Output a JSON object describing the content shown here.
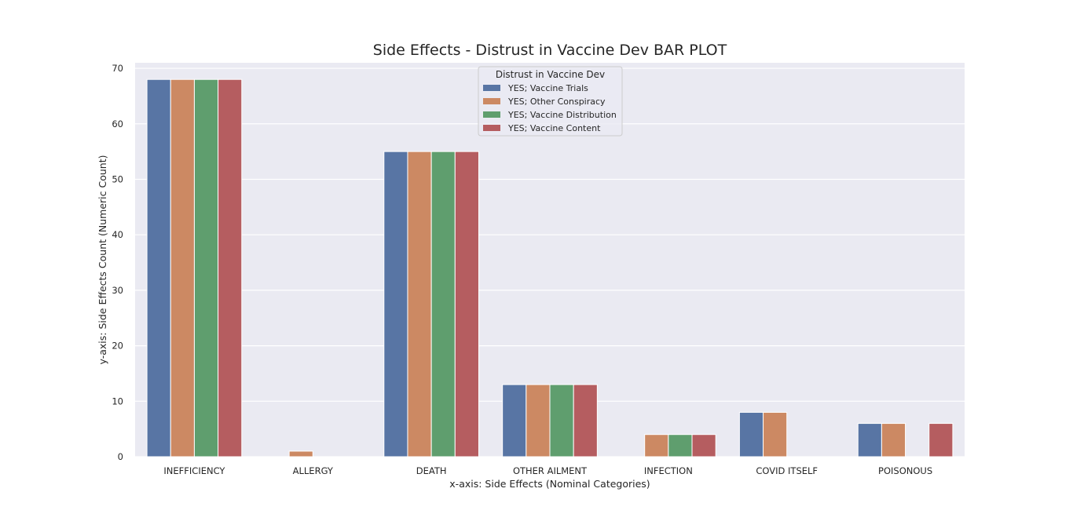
{
  "chart_data": {
    "type": "bar",
    "title": "Side Effects - Distrust in Vaccine Dev BAR PLOT",
    "xlabel": "x-axis: Side Effects (Nominal Categories)",
    "ylabel": "y-axis: Side Effects Count (Numeric Count)",
    "ylim": [
      0,
      71
    ],
    "yticks": [
      0,
      10,
      20,
      30,
      40,
      50,
      60,
      70
    ],
    "grid": true,
    "legend": {
      "title": "Distrust in Vaccine Dev",
      "placement": "top-center"
    },
    "categories": [
      "INEFFICIENCY",
      "ALLERGY",
      "DEATH",
      "OTHER AILMENT",
      "INFECTION",
      "COVID ITSELF",
      "POISONOUS"
    ],
    "series": [
      {
        "name": "YES; Vaccine Trials",
        "color": "#5875a4",
        "values": [
          68,
          0,
          55,
          13,
          0,
          8,
          6
        ]
      },
      {
        "name": "YES; Other Conspiracy",
        "color": "#cc8963",
        "values": [
          68,
          1,
          55,
          13,
          4,
          8,
          6
        ]
      },
      {
        "name": "YES; Vaccine Distribution",
        "color": "#5f9e6e",
        "values": [
          68,
          0,
          55,
          13,
          4,
          0,
          0
        ]
      },
      {
        "name": "YES; Vaccine Content",
        "color": "#b55d60",
        "values": [
          68,
          0,
          55,
          13,
          4,
          0,
          6
        ]
      }
    ],
    "background_color": "#eaeaf2",
    "grid_color": "#ffffff"
  }
}
